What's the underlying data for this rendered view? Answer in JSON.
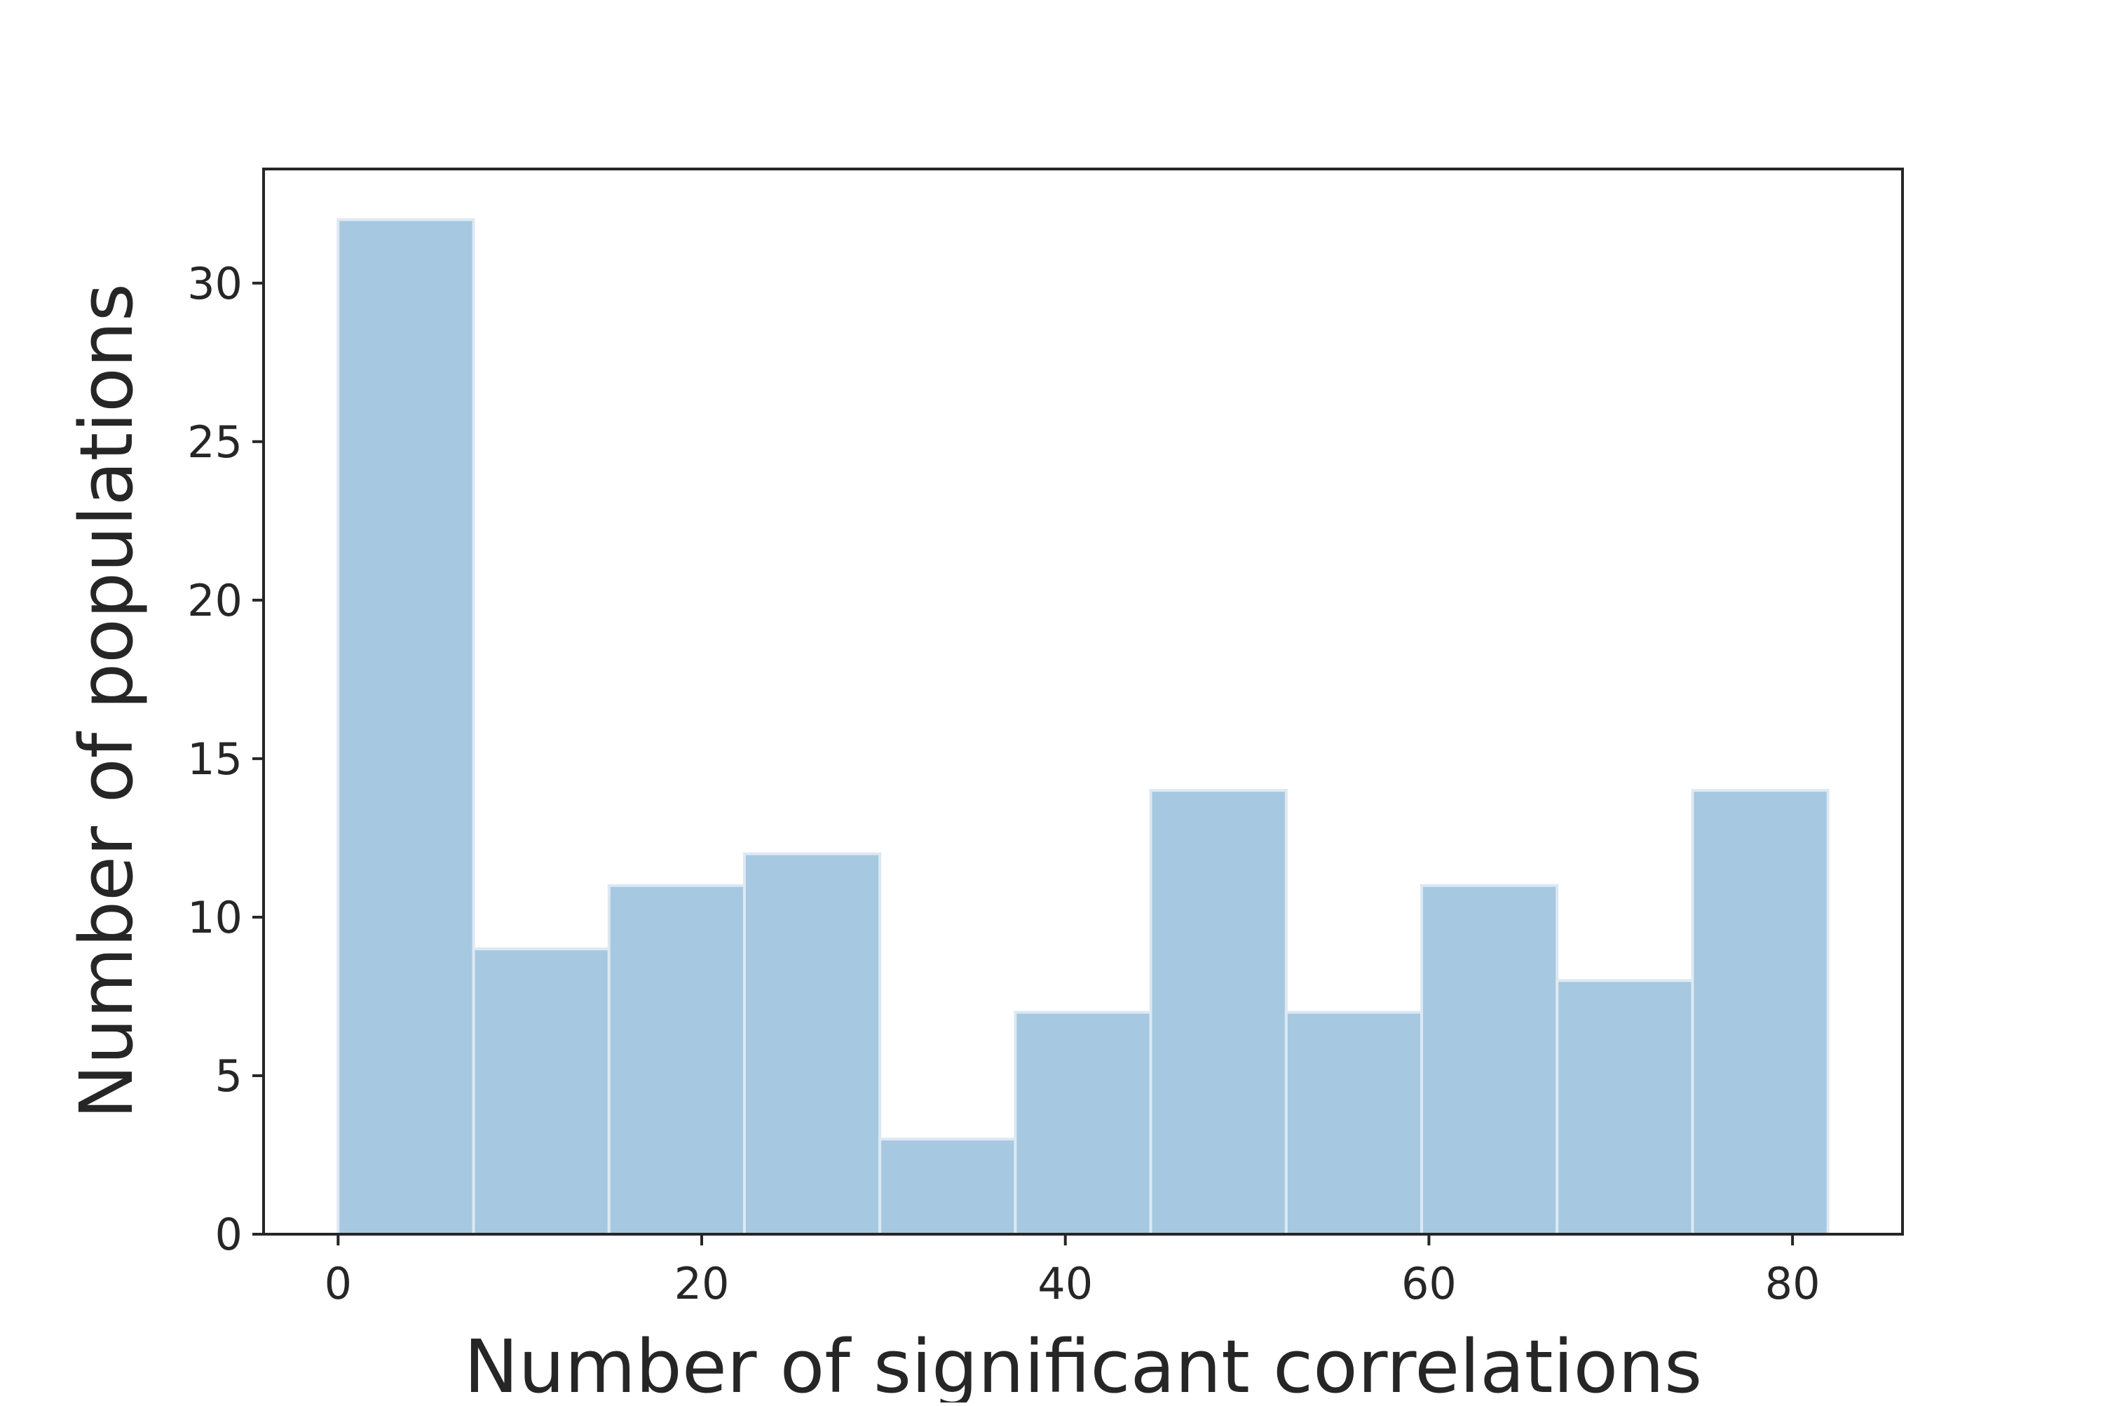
{
  "chart_data": {
    "type": "bar",
    "title": "",
    "xlabel": "Number of significant correlations",
    "ylabel": "Number of populations",
    "bin_edges": [
      0,
      7.45,
      14.9,
      22.35,
      29.8,
      37.25,
      44.7,
      52.15,
      59.6,
      67.05,
      74.5,
      81.95
    ],
    "values": [
      32,
      9,
      11,
      12,
      3,
      7,
      14,
      7,
      11,
      8,
      14
    ],
    "xlim": [
      -4.1,
      86.05
    ],
    "ylim": [
      0,
      33.6
    ],
    "xticks": [
      0,
      20,
      40,
      60,
      80
    ],
    "xtick_labels": [
      "0",
      "20",
      "40",
      "60",
      "80"
    ],
    "yticks": [
      0,
      5,
      10,
      15,
      20,
      25,
      30
    ],
    "ytick_labels": [
      "0",
      "5",
      "10",
      "15",
      "20",
      "25",
      "30"
    ],
    "grid": false,
    "legend": null,
    "colors": {
      "bar_fill": "#a6c8e0",
      "bar_edge": "#dce9f3",
      "axis": "#262626",
      "background": "#ffffff"
    }
  }
}
